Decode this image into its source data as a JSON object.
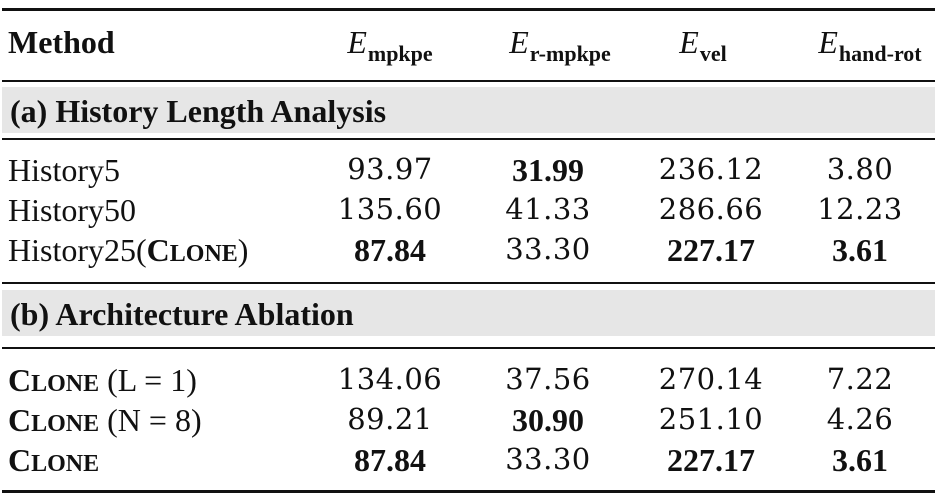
{
  "header": {
    "method": "Method",
    "col1": {
      "base": "E",
      "sub": "mpkpe"
    },
    "col2": {
      "base": "E",
      "sub": "r-mpkpe"
    },
    "col3": {
      "base": "E",
      "sub": "vel"
    },
    "col4": {
      "base": "E",
      "sub": "hand-rot"
    }
  },
  "sections": [
    {
      "title": "(a) History Length Analysis",
      "rows": [
        {
          "method": "History5",
          "v1": "93.97",
          "v2": "31.99",
          "v3": "236.12",
          "v4": "3.80"
        },
        {
          "method": "History50",
          "v1": "135.60",
          "v2": "41.33",
          "v3": "286.66",
          "v4": "12.23"
        },
        {
          "method_prefix": "History25(",
          "method_sc_first": "C",
          "method_sc_rest": "LONE",
          "method_suffix": ")",
          "v1": "87.84",
          "v2": "33.30",
          "v3": "227.17",
          "v4": "3.61"
        }
      ]
    },
    {
      "title": "(b) Architecture Ablation",
      "rows": [
        {
          "method_sc_first": "C",
          "method_sc_rest": "LONE",
          "method_suffix": " (L = 1)",
          "v1": "134.06",
          "v2": "37.56",
          "v3": "270.14",
          "v4": "7.22"
        },
        {
          "method_sc_first": "C",
          "method_sc_rest": "LONE",
          "method_suffix": " (N = 8)",
          "v1": "89.21",
          "v2": "30.90",
          "v3": "251.10",
          "v4": "4.26"
        },
        {
          "method_sc_first": "C",
          "method_sc_rest": "LONE",
          "v1": "87.84",
          "v2": "33.30",
          "v3": "227.17",
          "v4": "3.61"
        }
      ]
    }
  ]
}
